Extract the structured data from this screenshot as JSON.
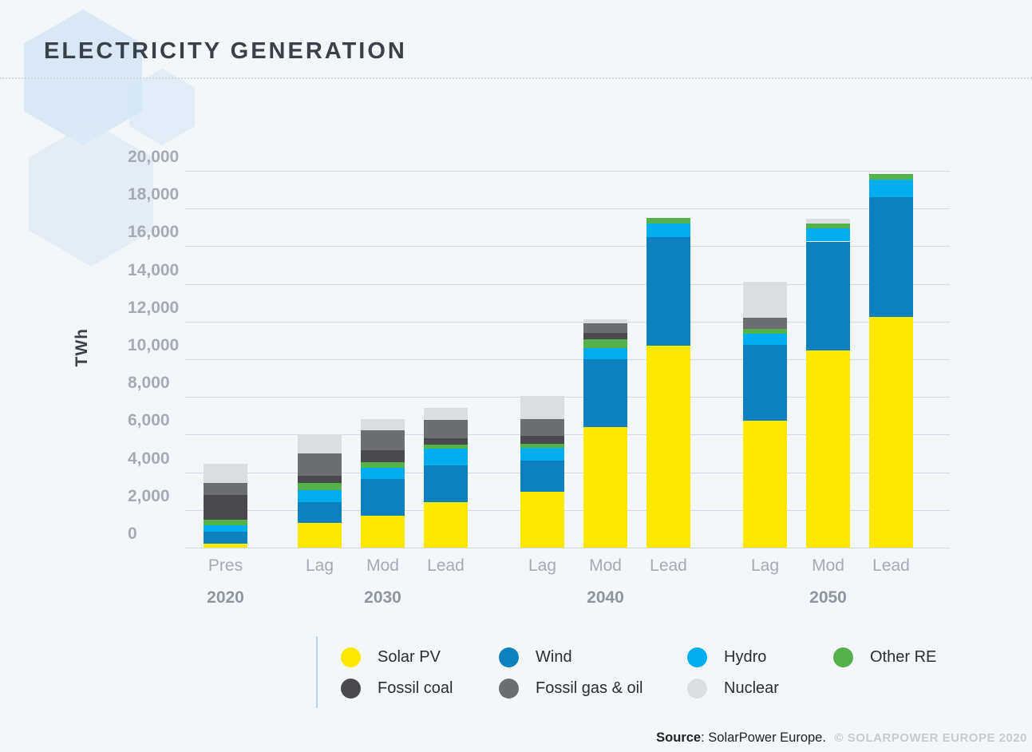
{
  "header": {
    "title": "ELECTRICITY GENERATION"
  },
  "chart_data": {
    "type": "bar",
    "stacked": true,
    "title": "ELECTRICITY GENERATION",
    "xlabel": "",
    "ylabel": "TWh",
    "ylim": [
      0,
      20000
    ],
    "ytick_step": 2000,
    "yticks": [
      "0",
      "2,000",
      "4,000",
      "6,000",
      "8,000",
      "10,000",
      "12,000",
      "14,000",
      "16,000",
      "18,000",
      "20,000"
    ],
    "grid": "horizontal",
    "categories": [
      "Pres",
      "Lag",
      "Mod",
      "Lead",
      "Lag",
      "Mod",
      "Lead",
      "Lag",
      "Mod",
      "Lead"
    ],
    "year_groups": [
      {
        "label": "2020",
        "category_indexes": [
          0
        ]
      },
      {
        "label": "2030",
        "category_indexes": [
          1,
          2,
          3
        ]
      },
      {
        "label": "2040",
        "category_indexes": [
          4,
          5,
          6
        ]
      },
      {
        "label": "2050",
        "category_indexes": [
          7,
          8,
          9
        ]
      }
    ],
    "unit": "TWh",
    "series": [
      {
        "name": "Solar PV",
        "color": "#ffe800",
        "values": [
          200,
          1300,
          1700,
          2400,
          2950,
          6400,
          10700,
          6750,
          10450,
          12250
        ]
      },
      {
        "name": "Wind",
        "color": "#0d80c0",
        "values": [
          650,
          1130,
          1940,
          1950,
          1650,
          3600,
          5800,
          4000,
          5800,
          6350
        ]
      },
      {
        "name": "Hydro",
        "color": "#00aeef",
        "values": [
          340,
          610,
          610,
          900,
          680,
          590,
          700,
          620,
          680,
          930
        ]
      },
      {
        "name": "Other RE",
        "color": "#54b14b",
        "values": [
          280,
          410,
          280,
          220,
          240,
          490,
          280,
          250,
          280,
          280
        ]
      },
      {
        "name": "Fossil coal",
        "color": "#4a4a4c",
        "values": [
          1310,
          370,
          620,
          350,
          420,
          330,
          0,
          0,
          0,
          0
        ]
      },
      {
        "name": "Fossil gas & oil",
        "color": "#6d6e71",
        "values": [
          660,
          1160,
          1060,
          950,
          890,
          480,
          0,
          590,
          0,
          0
        ]
      },
      {
        "name": "Nuclear",
        "color": "#dcdddf",
        "values": [
          1030,
          1030,
          610,
          660,
          1200,
          230,
          0,
          1880,
          250,
          0
        ]
      }
    ],
    "legend_position": "bottom"
  },
  "legend": {
    "items": [
      {
        "label": "Solar PV",
        "color": "#ffe800",
        "row": 0,
        "col": 0
      },
      {
        "label": "Wind",
        "color": "#0d80c0",
        "row": 0,
        "col": 1
      },
      {
        "label": "Hydro",
        "color": "#00aeef",
        "row": 0,
        "col": 2
      },
      {
        "label": "Other RE",
        "color": "#54b14b",
        "row": 0,
        "col": 3
      },
      {
        "label": "Fossil coal",
        "color": "#4a4a4c",
        "row": 1,
        "col": 0
      },
      {
        "label": "Fossil gas & oil",
        "color": "#6d6e71",
        "row": 1,
        "col": 1
      },
      {
        "label": "Nuclear",
        "color": "#dcdddf",
        "row": 1,
        "col": 2
      }
    ]
  },
  "footer": {
    "source_label": "Source",
    "source_text": ": SolarPower Europe.",
    "copyright": "© SOLARPOWER EUROPE 2020"
  },
  "colors": {
    "background": "#f4f7fa",
    "gridline": "#cedbe8",
    "axis_text": "#a4abb4",
    "year_text": "#8e969f",
    "title_text": "#3b4149",
    "legend_rule": "#b5d6eb"
  }
}
